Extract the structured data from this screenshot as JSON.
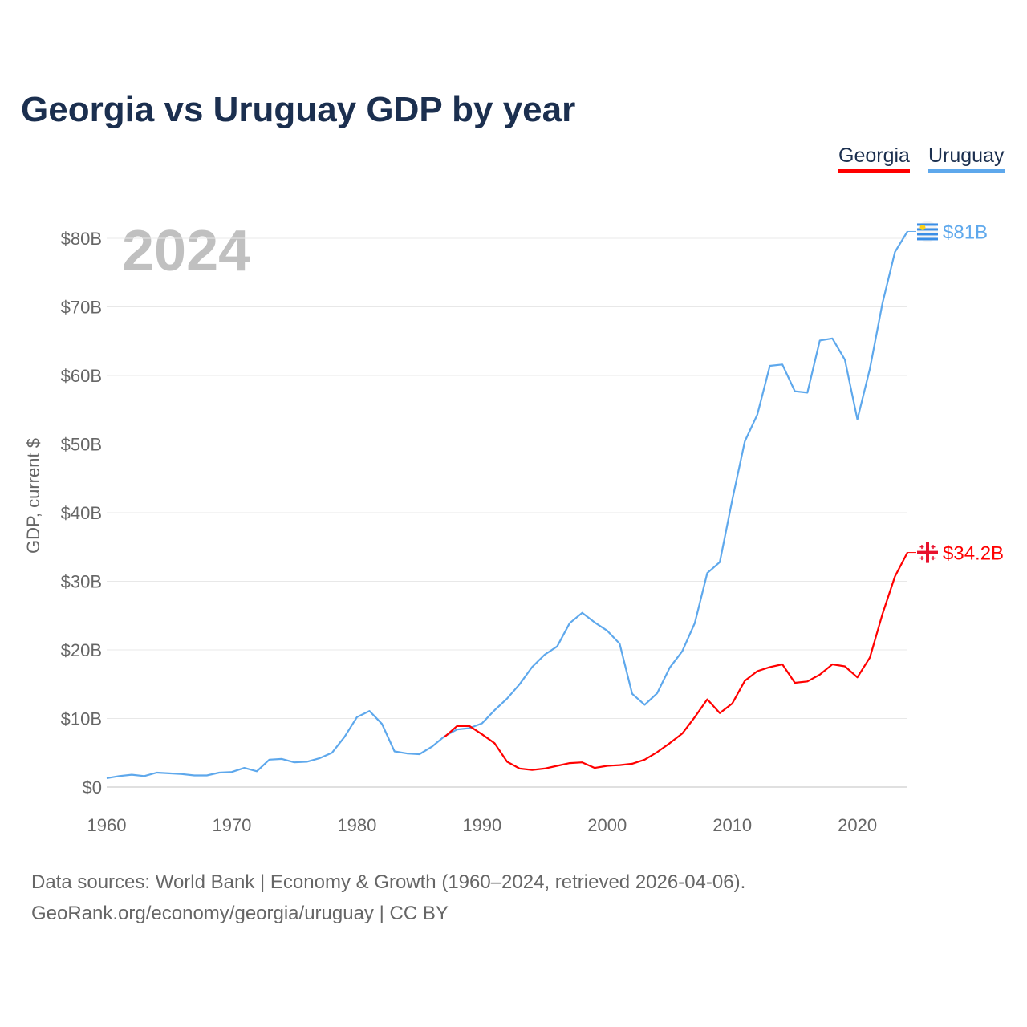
{
  "chart_data": {
    "type": "line",
    "title": "Georgia vs Uruguay GDP by year",
    "ylabel": "GDP, current $",
    "xlabel": "",
    "year_label": "2024",
    "xlim": [
      1960,
      2024
    ],
    "ylim": [
      0,
      80
    ],
    "x_ticks": [
      "1960",
      "1970",
      "1980",
      "1990",
      "2000",
      "2010",
      "2020"
    ],
    "y_ticks": [
      {
        "v": 0,
        "label": "$0"
      },
      {
        "v": 10,
        "label": "$10B"
      },
      {
        "v": 20,
        "label": "$20B"
      },
      {
        "v": 30,
        "label": "$30B"
      },
      {
        "v": 40,
        "label": "$40B"
      },
      {
        "v": 50,
        "label": "$50B"
      },
      {
        "v": 60,
        "label": "$60B"
      },
      {
        "v": 70,
        "label": "$70B"
      },
      {
        "v": 80,
        "label": "$80B"
      }
    ],
    "grid": true,
    "legend_placement": "top-right",
    "series": [
      {
        "name": "Georgia",
        "color": "#ff0000",
        "end_label": "$34.2B",
        "start_year": 1987,
        "values": [
          7.3,
          8.9,
          8.9,
          7.7,
          6.4,
          3.7,
          2.7,
          2.5,
          2.7,
          3.1,
          3.5,
          3.6,
          2.8,
          3.1,
          3.2,
          3.4,
          4.0,
          5.1,
          6.4,
          7.8,
          10.2,
          12.8,
          10.8,
          12.2,
          15.5,
          16.9,
          17.5,
          17.9,
          15.2,
          15.4,
          16.4,
          17.9,
          17.6,
          16.0,
          18.9,
          25.2,
          30.7,
          34.2
        ]
      },
      {
        "name": "Uruguay",
        "color": "#5ea8ec",
        "end_label": "$81B",
        "start_year": 1960,
        "values": [
          1.3,
          1.6,
          1.8,
          1.6,
          2.1,
          2.0,
          1.9,
          1.7,
          1.7,
          2.1,
          2.2,
          2.8,
          2.3,
          4.0,
          4.1,
          3.6,
          3.7,
          4.2,
          5.0,
          7.3,
          10.2,
          11.1,
          9.2,
          5.2,
          4.9,
          4.8,
          5.9,
          7.4,
          8.4,
          8.6,
          9.3,
          11.2,
          12.9,
          15.0,
          17.5,
          19.3,
          20.5,
          23.9,
          25.4,
          24.0,
          22.8,
          20.9,
          13.6,
          12.0,
          13.7,
          17.4,
          19.8,
          23.9,
          31.2,
          32.8,
          41.9,
          50.4,
          54.3,
          61.4,
          61.6,
          57.7,
          57.5,
          65.1,
          65.4,
          62.3,
          53.6,
          61.0,
          70.5,
          78.0,
          81.0
        ]
      }
    ]
  },
  "footer": {
    "line1": "Data sources: World Bank | Economy & Growth (1960–2024, retrieved 2026-04-06).",
    "line2": "GeoRank.org/economy/georgia/uruguay | CC BY"
  }
}
